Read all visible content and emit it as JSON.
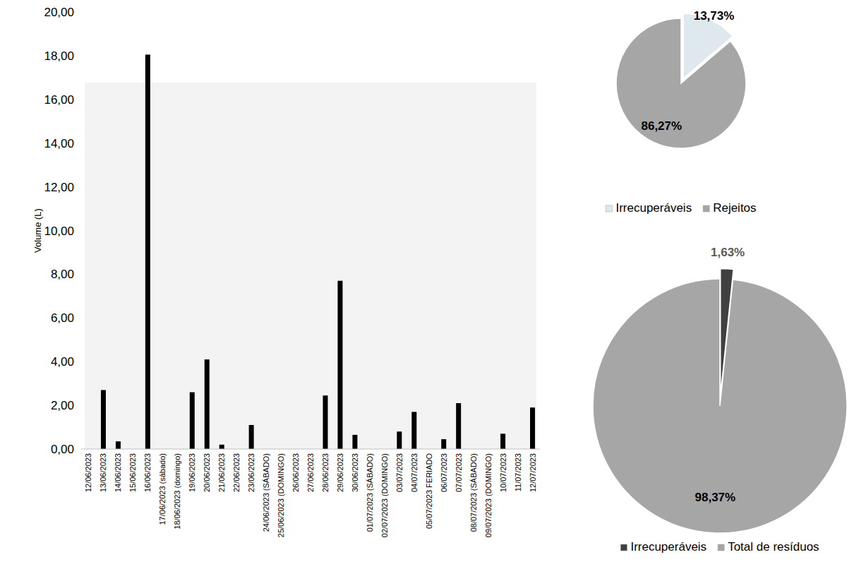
{
  "chart_data": [
    {
      "type": "bar",
      "y_label": "Volume (L)",
      "categories": [
        "12/06/2023",
        "13/06/2023",
        "14/06/2023",
        "15/06/2023",
        "16/06/2023",
        "17/06/2023 (sábado)",
        "18/06/2023 (domingo)",
        "19/06/2023",
        "20/06/2023",
        "21/06/2023",
        "22/06/2023",
        "23/06/2023",
        "24/06/2023 (SÁBADO)",
        "25/06/2023 (DOMINGO)",
        "26/06/2023",
        "27/06/2023",
        "28/06/2023",
        "29/06/2023",
        "30/06/2023",
        "01/07/2023 (SÁBADO)",
        "02/07/2023 (DOMINGO)",
        "03/07/2023",
        "04/07/2023",
        "05/07/2023 FERIADO",
        "06/07/2023",
        "07/07/2023",
        "08/07/2023 (SÁBADO)",
        "09/07/2023 (DOMINGO)",
        "10/07/2023",
        "11/07/2023",
        "12/07/2023"
      ],
      "values": [
        0,
        2.7,
        0.35,
        0,
        18.05,
        0,
        0,
        2.6,
        4.1,
        0.2,
        0,
        1.1,
        0,
        0,
        0,
        0,
        2.45,
        7.7,
        0.65,
        0,
        0,
        0.8,
        1.7,
        0,
        0.45,
        2.1,
        0,
        0,
        0.7,
        0,
        1.9
      ],
      "color": "#000000",
      "ylim": [
        0,
        20
      ],
      "yticks": [
        {
          "value": 0,
          "label": "0,00"
        },
        {
          "value": 2,
          "label": "2,00"
        },
        {
          "value": 4,
          "label": "4,00"
        },
        {
          "value": 6,
          "label": "6,00"
        },
        {
          "value": 8,
          "label": "8,00"
        },
        {
          "value": 10,
          "label": "10,00"
        },
        {
          "value": 12,
          "label": "12,00"
        },
        {
          "value": 14,
          "label": "14,00"
        },
        {
          "value": 16,
          "label": "16,00"
        },
        {
          "value": 18,
          "label": "18,00"
        },
        {
          "value": 20,
          "label": "20,00"
        }
      ],
      "grid": false
    },
    {
      "type": "pie",
      "categories": [
        "Irrecuperáveis",
        "Rejeitos"
      ],
      "values": [
        13.73,
        86.27
      ],
      "value_labels": [
        "13,73%",
        "86,27%"
      ],
      "colors": [
        "#dfe8ec",
        "#a6a6a6"
      ],
      "data_labels": true,
      "legend": "bottom"
    },
    {
      "type": "pie",
      "categories": [
        "Irrecuperáveis",
        "Total de resíduos"
      ],
      "values": [
        1.63,
        98.37
      ],
      "value_labels": [
        "1,63%",
        "98,37%"
      ],
      "colors": [
        "#404040",
        "#a6a6a6"
      ],
      "data_labels": true,
      "legend": "bottom"
    }
  ]
}
